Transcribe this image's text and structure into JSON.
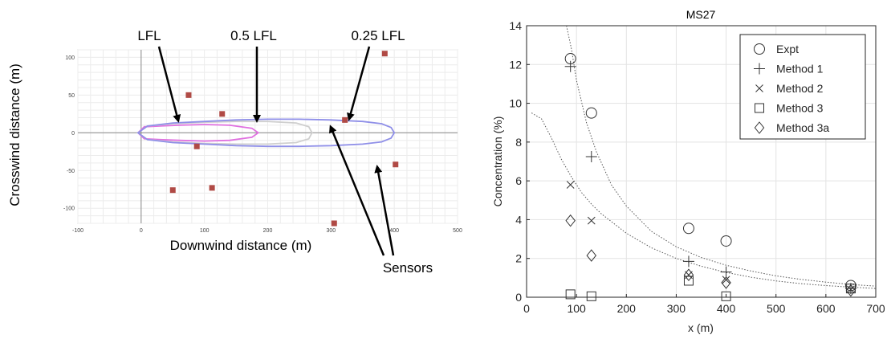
{
  "chart_data": [
    {
      "type": "scatter",
      "xlabel": "Downwind distance (m)",
      "ylabel": "Crosswind distance (m)",
      "xlim": [
        -100,
        500
      ],
      "ylim": [
        -120,
        110
      ],
      "xticks": [
        "-100",
        "0",
        "100",
        "200",
        "300",
        "400",
        "500"
      ],
      "yticks": [
        "100",
        "50",
        "0",
        "-50",
        "-100"
      ],
      "grid": true,
      "annotations": {
        "lfl": "LFL",
        "half_lfl": "0.5 LFL",
        "quarter_lfl": "0.25 LFL",
        "sensors": "Sensors"
      },
      "sensors": {
        "x": [
          75,
          128,
          88,
          50,
          112,
          322,
          385,
          402,
          305
        ],
        "y": [
          50,
          25,
          -18,
          -76,
          -73,
          17,
          105,
          -42,
          -120
        ]
      },
      "contours": [
        {
          "name": "LFL",
          "color": "#e070e0",
          "x": [
            -5,
            5,
            30,
            60,
            100,
            140,
            175,
            185,
            175,
            140,
            100,
            60,
            30,
            5
          ],
          "y": [
            0,
            8,
            9,
            10,
            11,
            10,
            6,
            0,
            -6,
            -10,
            -11,
            -10,
            -9,
            -8
          ]
        },
        {
          "name": "0.5 LFL",
          "color": "#cfcfcf",
          "x": [
            -5,
            10,
            50,
            100,
            150,
            200,
            245,
            265,
            270,
            265,
            245,
            200,
            150,
            100,
            50,
            10
          ],
          "y": [
            0,
            9,
            12,
            14,
            15,
            15,
            13,
            8,
            0,
            -8,
            -13,
            -15,
            -15,
            -14,
            -12,
            -9
          ]
        },
        {
          "name": "0.25 LFL",
          "color": "#8f8fe8",
          "x": [
            -5,
            10,
            50,
            100,
            150,
            200,
            250,
            300,
            350,
            380,
            395,
            400,
            395,
            380,
            350,
            300,
            250,
            200,
            150,
            100,
            50,
            10
          ],
          "y": [
            0,
            9,
            13,
            15,
            17,
            18,
            18,
            17,
            15,
            12,
            7,
            0,
            -7,
            -12,
            -15,
            -17,
            -18,
            -18,
            -17,
            -15,
            -13,
            -9
          ],
          "color2": "#8f8fe8"
        }
      ]
    },
    {
      "type": "scatter",
      "title": "MS27",
      "xlabel": "x (m)",
      "ylabel": "Concentration (%)",
      "xlim": [
        0,
        700
      ],
      "ylim": [
        0,
        14
      ],
      "xticks": [
        "0",
        "100",
        "200",
        "300",
        "400",
        "500",
        "600",
        "700"
      ],
      "yticks": [
        "0",
        "2",
        "4",
        "6",
        "8",
        "10",
        "12",
        "14"
      ],
      "grid": true,
      "legend_position": "top-right",
      "series": [
        {
          "name": "Expt",
          "marker": "circle",
          "x": [
            88,
            130,
            325,
            400,
            650
          ],
          "y": [
            12.3,
            9.5,
            3.55,
            2.9,
            0.6
          ]
        },
        {
          "name": "Method 1",
          "marker": "plus",
          "x": [
            88,
            130,
            325,
            400,
            650
          ],
          "y": [
            11.9,
            7.25,
            1.85,
            1.3,
            0.45
          ]
        },
        {
          "name": "Method 2",
          "marker": "x",
          "x": [
            88,
            130,
            325,
            400,
            650
          ],
          "y": [
            5.8,
            3.95,
            1.15,
            0.9,
            0.4
          ]
        },
        {
          "name": "Method 3",
          "marker": "square",
          "x": [
            88,
            130,
            325,
            400,
            650
          ],
          "y": [
            0.15,
            0.05,
            0.85,
            0.05,
            0.45
          ]
        },
        {
          "name": "Method 3a",
          "marker": "diamond",
          "x": [
            88,
            130,
            325,
            400,
            650
          ],
          "y": [
            3.95,
            2.15,
            1.15,
            0.75,
            0.35
          ]
        }
      ],
      "curves": [
        {
          "x": [
            80,
            90,
            100,
            120,
            140,
            170,
            200,
            250,
            300,
            350,
            400,
            450,
            500,
            550,
            600,
            650,
            700
          ],
          "y": [
            14,
            12.8,
            11.2,
            9.0,
            7.5,
            5.8,
            4.7,
            3.4,
            2.6,
            2.05,
            1.65,
            1.35,
            1.1,
            0.92,
            0.78,
            0.66,
            0.57
          ]
        },
        {
          "x": [
            10,
            30,
            50,
            70,
            90,
            110,
            130,
            150,
            200,
            250,
            300,
            350,
            400,
            450,
            500,
            550,
            600,
            650,
            700
          ],
          "y": [
            9.5,
            9.2,
            8.2,
            7.1,
            6.2,
            5.4,
            4.8,
            4.3,
            3.3,
            2.55,
            2.0,
            1.6,
            1.28,
            1.03,
            0.84,
            0.7,
            0.6,
            0.52,
            0.45
          ]
        }
      ]
    }
  ]
}
